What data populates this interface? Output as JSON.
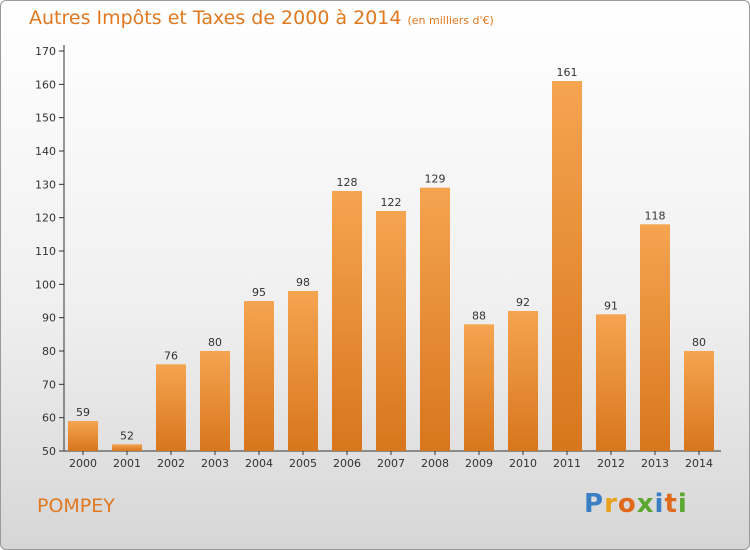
{
  "header": {
    "title": "Autres Impôts et Taxes de 2000 à 2014",
    "subtitle": "(en milliers d'€)"
  },
  "footer": {
    "place": "POMPEY",
    "brand_letters": [
      {
        "ch": "P",
        "color": "#3a7fc4"
      },
      {
        "ch": "r",
        "color": "#e8a21c"
      },
      {
        "ch": "o",
        "color": "#e06a1c"
      },
      {
        "ch": "x",
        "color": "#5aa832"
      },
      {
        "ch": "i",
        "color": "#3a7fc4"
      },
      {
        "ch": "t",
        "color": "#e06a1c"
      },
      {
        "ch": "i",
        "color": "#5aa832"
      }
    ]
  },
  "colors": {
    "accent": "#e07820",
    "bar_top": "#f5a450",
    "bar_bottom": "#d8761d"
  },
  "chart_data": {
    "type": "bar",
    "categories": [
      "2000",
      "2001",
      "2002",
      "2003",
      "2004",
      "2005",
      "2006",
      "2007",
      "2008",
      "2009",
      "2010",
      "2011",
      "2012",
      "2013",
      "2014"
    ],
    "values": [
      59,
      52,
      76,
      80,
      95,
      98,
      128,
      122,
      129,
      88,
      92,
      161,
      91,
      118,
      80
    ],
    "ylim": [
      50,
      170
    ],
    "yticks": [
      50,
      60,
      70,
      80,
      90,
      100,
      110,
      120,
      130,
      140,
      150,
      160,
      170
    ],
    "grid": false,
    "legend": "none"
  }
}
